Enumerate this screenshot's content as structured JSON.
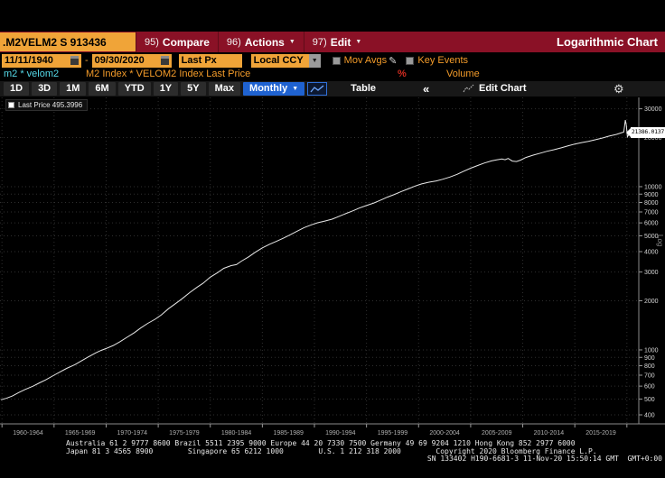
{
  "colors": {
    "menubar_red": "#8a1126",
    "amber": "#f0a438",
    "amber_text": "#f49c2a",
    "cyan": "#55d9e8",
    "blue_accent": "#1f62d0",
    "line": "#e8e8e8",
    "grid": "#2f2f2f",
    "percent_red": "#d22c20"
  },
  "menubar": {
    "security_ticker": ".M2VELM2 S 913436",
    "items": [
      {
        "num": "95)",
        "label": "Compare",
        "arrow": ""
      },
      {
        "num": "96)",
        "label": "Actions",
        "arrow": "▼"
      },
      {
        "num": "97)",
        "label": "Edit",
        "arrow": "▼"
      }
    ],
    "right_title": "Logarithmic Chart"
  },
  "settings": {
    "date_from": "11/11/1940",
    "date_separator": "-",
    "date_to": "09/30/2020",
    "price_field": "Last Px",
    "currency": "Local CCY",
    "currency_arrow": "▼",
    "mov_avgs": "Mov Avgs",
    "pencil": "✎",
    "key_events": "Key Events"
  },
  "securities": {
    "tickers": "m2 * velom2",
    "description": "M2 Index * VELOM2 Index Last Price",
    "percent": "%",
    "volume": "Volume"
  },
  "toolbar": {
    "ranges": [
      "1D",
      "3D",
      "1M",
      "6M",
      "YTD",
      "1Y",
      "5Y",
      "Max"
    ],
    "period": "Monthly",
    "period_arrow": "▼",
    "table": "Table",
    "collapse": "«",
    "edit_chart": "Edit Chart",
    "gear": "⚙"
  },
  "chart": {
    "legend": "Last Price 495.3996",
    "last_value_label": "21386.0137",
    "scale_label": "Log"
  },
  "chart_data": {
    "type": "line",
    "title": "M2 Index * VELOM2 Index Last Price",
    "series_name": "Last Price",
    "log_scale": true,
    "legend_start_value": 495.3996,
    "last_value": 21386.0137,
    "y_ticks": [
      30000,
      20000,
      10000,
      9000,
      8000,
      7000,
      6000,
      5000,
      4000,
      3000,
      2000,
      1000,
      900,
      800,
      700,
      600,
      500,
      400
    ],
    "x_labels": [
      "1960-1964",
      "1965-1969",
      "1970-1974",
      "1975-1979",
      "1980-1984",
      "1985-1989",
      "1990-1994",
      "1995-1999",
      "2000-2004",
      "2005-2009",
      "2010-2014",
      "2015-2019"
    ],
    "x_range": [
      1959.9,
      2020.75
    ],
    "y_range": [
      400,
      32000
    ],
    "points": [
      [
        1959.9,
        495
      ],
      [
        1960.4,
        505
      ],
      [
        1961,
        522
      ],
      [
        1961.6,
        548
      ],
      [
        1962.2,
        572
      ],
      [
        1963,
        600
      ],
      [
        1963.6,
        628
      ],
      [
        1964.2,
        655
      ],
      [
        1965,
        700
      ],
      [
        1965.6,
        735
      ],
      [
        1966.2,
        770
      ],
      [
        1967,
        812
      ],
      [
        1967.6,
        855
      ],
      [
        1968.2,
        900
      ],
      [
        1969,
        958
      ],
      [
        1969.5,
        992
      ],
      [
        1970,
        1020
      ],
      [
        1970.7,
        1065
      ],
      [
        1971.3,
        1120
      ],
      [
        1972,
        1195
      ],
      [
        1972.7,
        1275
      ],
      [
        1973.3,
        1360
      ],
      [
        1974,
        1455
      ],
      [
        1974.7,
        1540
      ],
      [
        1975.3,
        1640
      ],
      [
        1976,
        1790
      ],
      [
        1976.7,
        1930
      ],
      [
        1977.3,
        2060
      ],
      [
        1978,
        2240
      ],
      [
        1978.7,
        2415
      ],
      [
        1979.3,
        2560
      ],
      [
        1980,
        2790
      ],
      [
        1980.7,
        2975
      ],
      [
        1981.3,
        3160
      ],
      [
        1982,
        3285
      ],
      [
        1982.5,
        3330
      ],
      [
        1983,
        3500
      ],
      [
        1983.7,
        3720
      ],
      [
        1984.3,
        3960
      ],
      [
        1985,
        4220
      ],
      [
        1985.7,
        4440
      ],
      [
        1986.3,
        4610
      ],
      [
        1987,
        4830
      ],
      [
        1987.7,
        5080
      ],
      [
        1988.3,
        5320
      ],
      [
        1989,
        5610
      ],
      [
        1989.7,
        5840
      ],
      [
        1990.3,
        6010
      ],
      [
        1991,
        6160
      ],
      [
        1991.7,
        6320
      ],
      [
        1992.3,
        6550
      ],
      [
        1993,
        6830
      ],
      [
        1993.7,
        7120
      ],
      [
        1994.3,
        7390
      ],
      [
        1995,
        7660
      ],
      [
        1995.7,
        7940
      ],
      [
        1996.3,
        8240
      ],
      [
        1997,
        8630
      ],
      [
        1997.7,
        8970
      ],
      [
        1998.3,
        9310
      ],
      [
        1999,
        9700
      ],
      [
        1999.7,
        10100
      ],
      [
        2000.3,
        10400
      ],
      [
        2001,
        10650
      ],
      [
        2001.7,
        10850
      ],
      [
        2002.3,
        11100
      ],
      [
        2003,
        11450
      ],
      [
        2003.7,
        11900
      ],
      [
        2004.3,
        12400
      ],
      [
        2005,
        12980
      ],
      [
        2005.7,
        13500
      ],
      [
        2006.3,
        13950
      ],
      [
        2007,
        14380
      ],
      [
        2007.5,
        14600
      ],
      [
        2008,
        14770
      ],
      [
        2008.3,
        14620
      ],
      [
        2008.6,
        14880
      ],
      [
        2009,
        14350
      ],
      [
        2009.4,
        14250
      ],
      [
        2009.8,
        14550
      ],
      [
        2010.3,
        15100
      ],
      [
        2011,
        15600
      ],
      [
        2011.7,
        16050
      ],
      [
        2012.3,
        16450
      ],
      [
        2013,
        16850
      ],
      [
        2013.7,
        17300
      ],
      [
        2014.3,
        17750
      ],
      [
        2015,
        18250
      ],
      [
        2015.7,
        18650
      ],
      [
        2016.3,
        18950
      ],
      [
        2017,
        19400
      ],
      [
        2017.7,
        19900
      ],
      [
        2018.3,
        20400
      ],
      [
        2019,
        20900
      ],
      [
        2019.4,
        21300
      ],
      [
        2019.7,
        21600
      ],
      [
        2019.85,
        25600
      ],
      [
        2019.95,
        23800
      ],
      [
        2020.05,
        20200
      ],
      [
        2020.2,
        20900
      ],
      [
        2020.35,
        21386.0137
      ]
    ]
  },
  "footer": {
    "line1": "Australia 61 2 9777 8600 Brazil 5511 2395 9000 Europe 44 20 7330 7500 Germany 49 69 9204 1210 Hong Kong 852 2977 6000",
    "line2": "Japan 81 3 4565 8900        Singapore 65 6212 1000        U.S. 1 212 318 2000        Copyright 2020 Bloomberg Finance L.P.",
    "line3": "SN 133402 H190-6681-3 11-Nov-20 15:50:14 GMT  GMT+0:00"
  }
}
